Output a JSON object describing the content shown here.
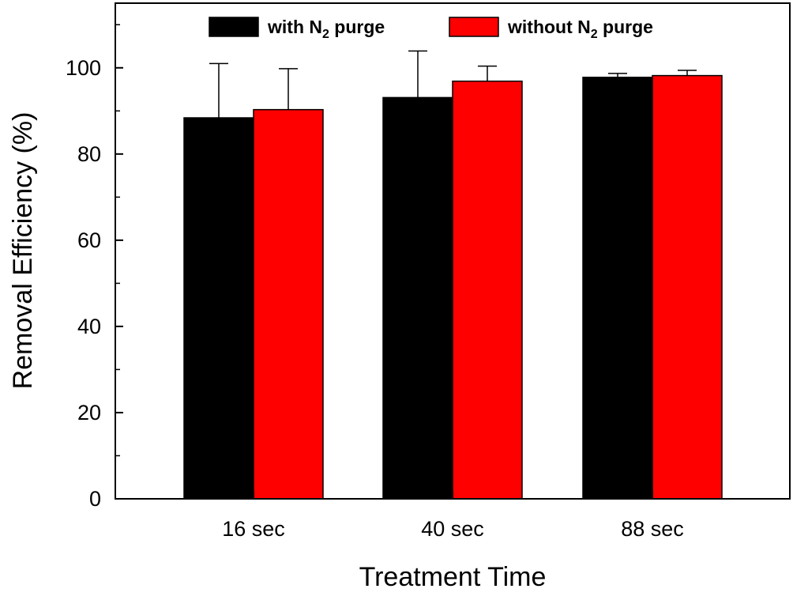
{
  "chart_data": {
    "type": "bar",
    "title": "",
    "xlabel": "Treatment Time",
    "ylabel": "Removal Efficiency (%)",
    "categories": [
      "16 sec",
      "40 sec",
      "88 sec"
    ],
    "ylim": [
      0,
      115
    ],
    "yticks": [
      0,
      20,
      40,
      60,
      80,
      100
    ],
    "grid": false,
    "legend": {
      "placement": "top-center"
    },
    "series": [
      {
        "name": "with N2 purge",
        "name_base": "with N",
        "name_sub": "2",
        "name_tail": " purge",
        "color": "#000000",
        "values": [
          88.4,
          93.1,
          97.8
        ],
        "errors": [
          12.6,
          10.8,
          0.9
        ]
      },
      {
        "name": "without N2 purge",
        "name_base": "without N",
        "name_sub": "2",
        "name_tail": " purge",
        "color": "#ff0000",
        "values": [
          90.3,
          96.9,
          98.2
        ],
        "errors": [
          9.5,
          3.5,
          1.2
        ]
      }
    ]
  }
}
